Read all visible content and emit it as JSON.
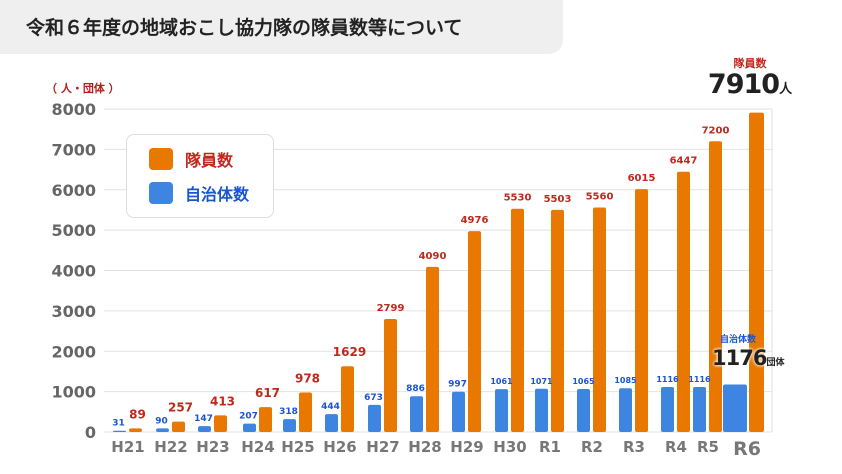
{
  "title": "令和６年度の地域おこし協力隊の隊員数等について",
  "chart_data": {
    "type": "bar",
    "unit_label": "（ 人・団体 ）",
    "categories": [
      "H21",
      "H22",
      "H23",
      "H24",
      "H25",
      "H26",
      "H27",
      "H28",
      "H29",
      "H30",
      "R1",
      "R2",
      "R3",
      "R4",
      "R5",
      "R6"
    ],
    "series": [
      {
        "name": "隊員数",
        "color": "#e87800",
        "label_color": "#c0281c",
        "values": [
          89,
          257,
          413,
          617,
          978,
          1629,
          2799,
          4090,
          4976,
          5530,
          5503,
          5560,
          6015,
          6447,
          7200,
          7910
        ]
      },
      {
        "name": "自治体数",
        "color": "#3d85e0",
        "label_color": "#1a55d0",
        "values": [
          31,
          90,
          147,
          207,
          318,
          444,
          673,
          886,
          997,
          1061,
          1071,
          1065,
          1085,
          1116,
          1116,
          1176
        ]
      }
    ],
    "ylim": [
      0,
      8000
    ],
    "yticks": [
      "0",
      "1000",
      "2000",
      "3000",
      "4000",
      "5000",
      "6000",
      "7000",
      "8000"
    ],
    "grid": true,
    "legend": "top-left",
    "highlight": {
      "members": {
        "label": "隊員数",
        "value": "7910",
        "unit": "人"
      },
      "municipalities": {
        "label": "自治体数",
        "value": "1176",
        "unit": "団体"
      }
    }
  }
}
